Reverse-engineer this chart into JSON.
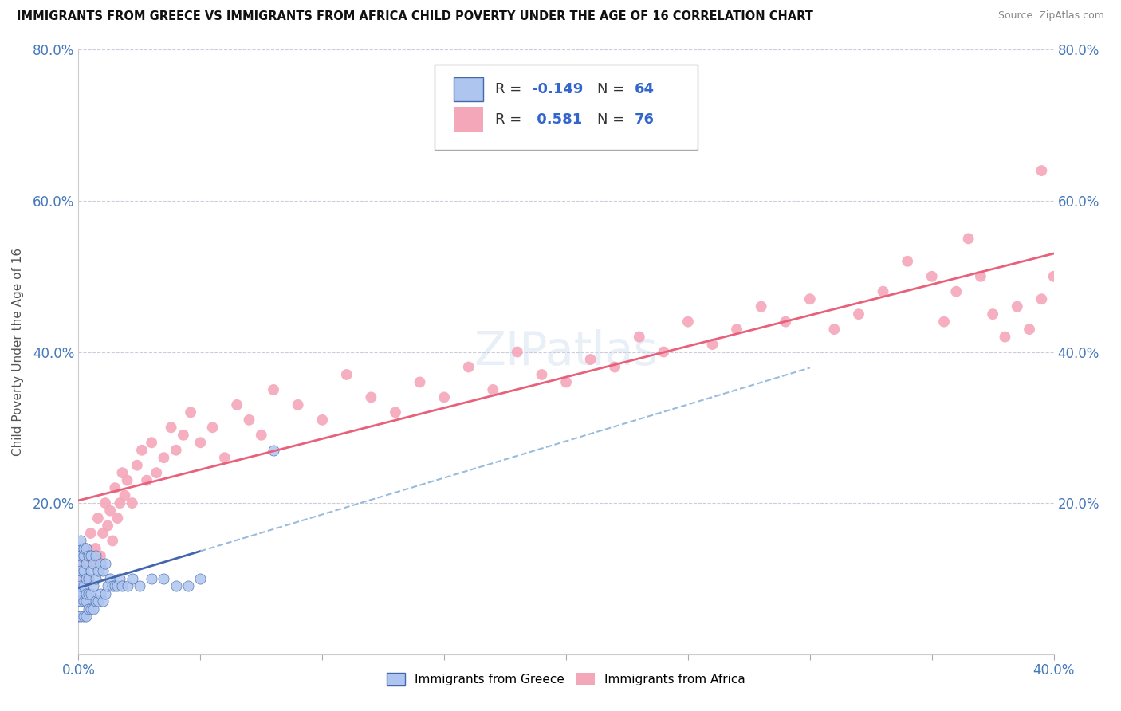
{
  "title": "IMMIGRANTS FROM GREECE VS IMMIGRANTS FROM AFRICA CHILD POVERTY UNDER THE AGE OF 16 CORRELATION CHART",
  "source": "Source: ZipAtlas.com",
  "ylabel": "Child Poverty Under the Age of 16",
  "legend_label1": "Immigrants from Greece",
  "legend_label2": "Immigrants from Africa",
  "R1": -0.149,
  "N1": 64,
  "R2": 0.581,
  "N2": 76,
  "color_greece": "#aec6ef",
  "color_africa": "#f4a7b9",
  "color_greece_line_solid": "#4466aa",
  "color_greece_line_dash": "#99bbdd",
  "color_africa_line": "#e8607a",
  "watermark": "ZIPatlas",
  "xlim": [
    0.0,
    0.4
  ],
  "ylim": [
    0.0,
    0.8
  ],
  "greece_x": [
    0.0,
    0.0,
    0.0,
    0.0,
    0.0,
    0.0,
    0.0,
    0.001,
    0.001,
    0.001,
    0.001,
    0.001,
    0.001,
    0.001,
    0.002,
    0.002,
    0.002,
    0.002,
    0.002,
    0.002,
    0.003,
    0.003,
    0.003,
    0.003,
    0.003,
    0.003,
    0.004,
    0.004,
    0.004,
    0.004,
    0.005,
    0.005,
    0.005,
    0.005,
    0.006,
    0.006,
    0.006,
    0.007,
    0.007,
    0.007,
    0.008,
    0.008,
    0.009,
    0.009,
    0.01,
    0.01,
    0.011,
    0.011,
    0.012,
    0.013,
    0.014,
    0.015,
    0.016,
    0.017,
    0.018,
    0.02,
    0.022,
    0.025,
    0.03,
    0.035,
    0.04,
    0.045,
    0.05,
    0.08
  ],
  "greece_y": [
    0.05,
    0.07,
    0.08,
    0.09,
    0.1,
    0.12,
    0.14,
    0.05,
    0.07,
    0.08,
    0.09,
    0.11,
    0.13,
    0.15,
    0.05,
    0.07,
    0.09,
    0.11,
    0.13,
    0.14,
    0.05,
    0.07,
    0.08,
    0.1,
    0.12,
    0.14,
    0.06,
    0.08,
    0.1,
    0.13,
    0.06,
    0.08,
    0.11,
    0.13,
    0.06,
    0.09,
    0.12,
    0.07,
    0.1,
    0.13,
    0.07,
    0.11,
    0.08,
    0.12,
    0.07,
    0.11,
    0.08,
    0.12,
    0.09,
    0.1,
    0.09,
    0.09,
    0.09,
    0.1,
    0.09,
    0.09,
    0.1,
    0.09,
    0.1,
    0.1,
    0.09,
    0.09,
    0.1,
    0.27
  ],
  "africa_x": [
    0.001,
    0.002,
    0.003,
    0.004,
    0.005,
    0.006,
    0.007,
    0.008,
    0.009,
    0.01,
    0.011,
    0.012,
    0.013,
    0.014,
    0.015,
    0.016,
    0.017,
    0.018,
    0.019,
    0.02,
    0.022,
    0.024,
    0.026,
    0.028,
    0.03,
    0.032,
    0.035,
    0.038,
    0.04,
    0.043,
    0.046,
    0.05,
    0.055,
    0.06,
    0.065,
    0.07,
    0.075,
    0.08,
    0.09,
    0.1,
    0.11,
    0.12,
    0.13,
    0.14,
    0.15,
    0.16,
    0.17,
    0.18,
    0.19,
    0.2,
    0.21,
    0.22,
    0.23,
    0.24,
    0.25,
    0.26,
    0.27,
    0.28,
    0.29,
    0.3,
    0.31,
    0.32,
    0.33,
    0.34,
    0.35,
    0.355,
    0.36,
    0.365,
    0.37,
    0.375,
    0.38,
    0.385,
    0.39,
    0.395,
    0.395,
    0.4
  ],
  "africa_y": [
    0.1,
    0.12,
    0.14,
    0.1,
    0.16,
    0.12,
    0.14,
    0.18,
    0.13,
    0.16,
    0.2,
    0.17,
    0.19,
    0.15,
    0.22,
    0.18,
    0.2,
    0.24,
    0.21,
    0.23,
    0.2,
    0.25,
    0.27,
    0.23,
    0.28,
    0.24,
    0.26,
    0.3,
    0.27,
    0.29,
    0.32,
    0.28,
    0.3,
    0.26,
    0.33,
    0.31,
    0.29,
    0.35,
    0.33,
    0.31,
    0.37,
    0.34,
    0.32,
    0.36,
    0.34,
    0.38,
    0.35,
    0.4,
    0.37,
    0.36,
    0.39,
    0.38,
    0.42,
    0.4,
    0.44,
    0.41,
    0.43,
    0.46,
    0.44,
    0.47,
    0.43,
    0.45,
    0.48,
    0.52,
    0.5,
    0.44,
    0.48,
    0.55,
    0.5,
    0.45,
    0.42,
    0.46,
    0.43,
    0.47,
    0.64,
    0.5
  ]
}
